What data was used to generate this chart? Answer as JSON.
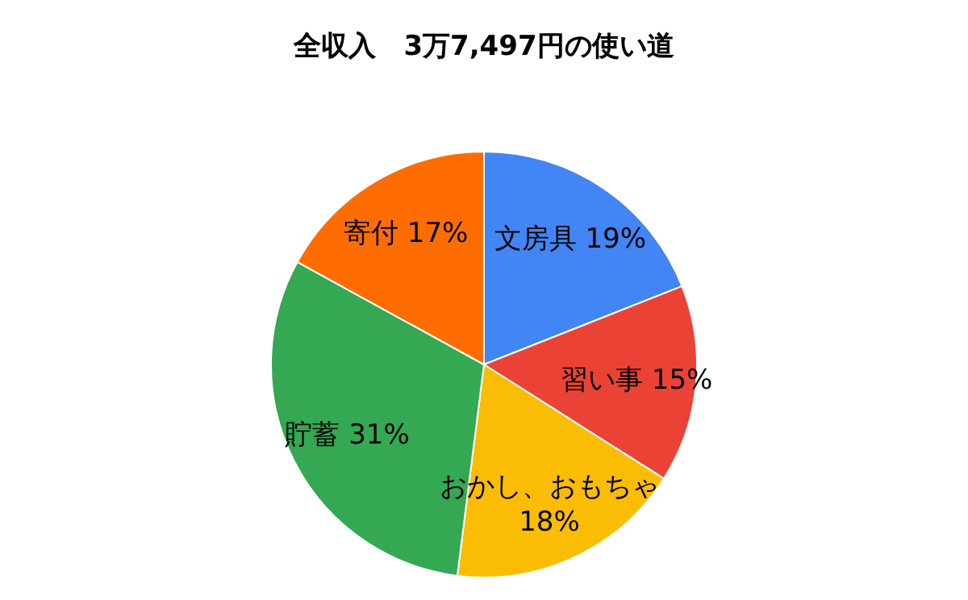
{
  "chart_data": {
    "type": "pie",
    "title": "全収入　3万7,497円の使い道",
    "categories": [
      "文房具",
      "習い事",
      "おかし、おもちゃ",
      "貯蓄",
      "寄付"
    ],
    "values": [
      19,
      15,
      18,
      31,
      17
    ],
    "value_labels": [
      "19%",
      "15%",
      "18%",
      "31%",
      "17%"
    ],
    "colors": [
      "#4285f4",
      "#ea4335",
      "#fbbc04",
      "#34a853",
      "#ff6d01"
    ]
  }
}
